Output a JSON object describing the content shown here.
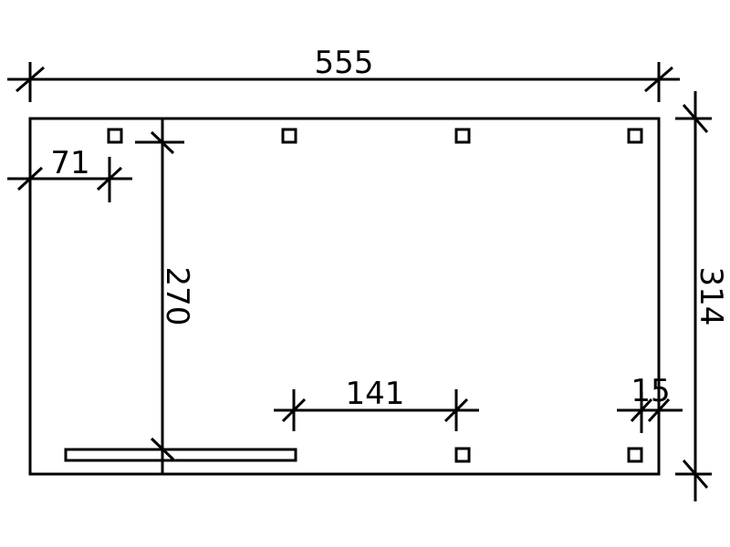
{
  "dimensions": {
    "overall_width": "555",
    "overall_depth": "314",
    "side_offset": "71",
    "inner_depth": "270",
    "post_spacing": "141",
    "post_edge_offset": "15"
  },
  "colors": {
    "line": "#000000",
    "background": "#ffffff"
  }
}
